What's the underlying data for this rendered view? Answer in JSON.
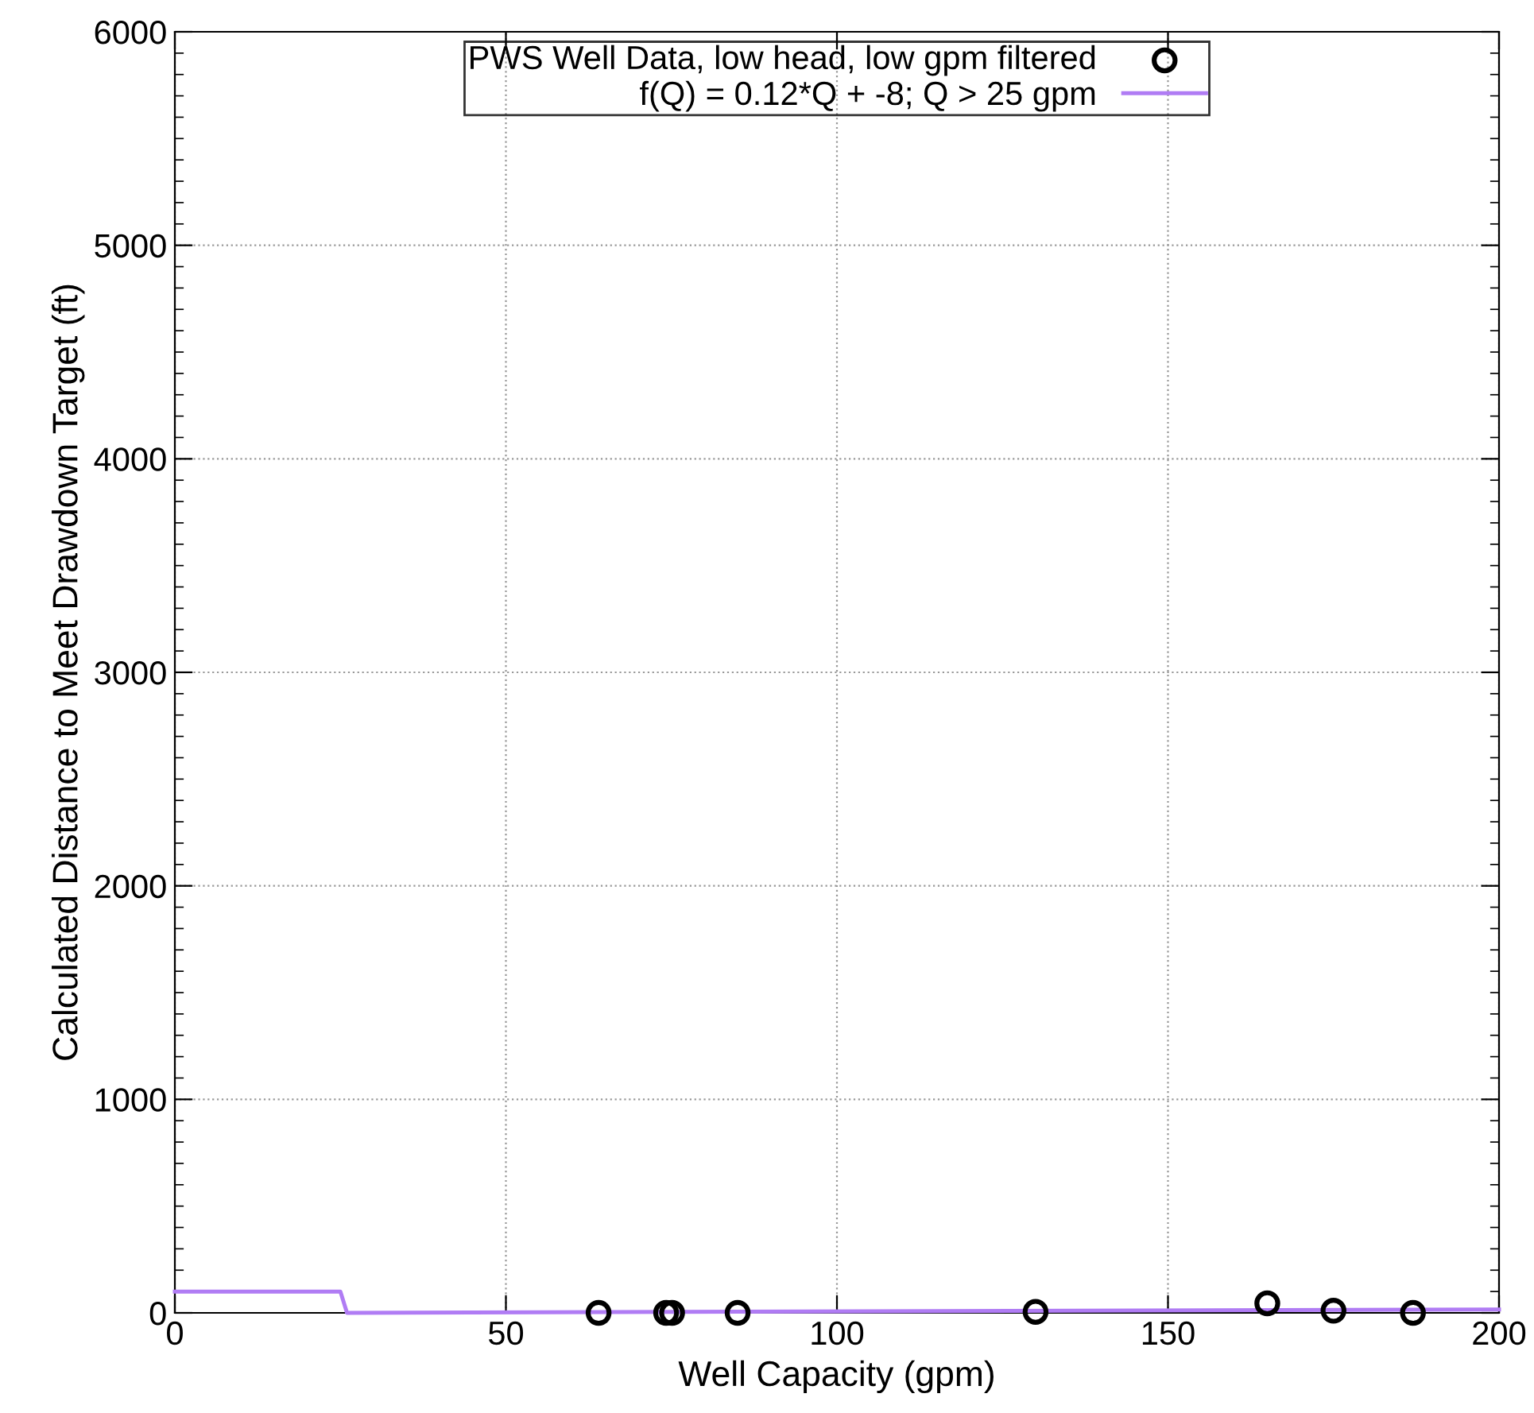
{
  "chart_data": {
    "type": "scatter",
    "xlabel": "Well Capacity (gpm)",
    "ylabel": "Calculated Distance to Meet Drawdown Target (ft)",
    "xlim": [
      0,
      200
    ],
    "ylim": [
      0,
      6000
    ],
    "xticks": [
      0,
      50,
      100,
      150,
      200
    ],
    "yticks": [
      0,
      1000,
      2000,
      3000,
      4000,
      5000,
      6000
    ],
    "grid": true,
    "legend": "top",
    "series": [
      {
        "name": "PWS Well Data, low head, low gpm filtered",
        "marker": "circle",
        "color": "#000000",
        "x": [
          64,
          74.2,
          75.1,
          85,
          130,
          165,
          175,
          187
        ],
        "values": [
          0,
          0,
          0,
          0,
          5,
          45,
          10,
          0
        ]
      },
      {
        "name": "f(Q) = 0.12*Q + -8; Q > 25 gpm",
        "type": "line",
        "color": "#b07cf4",
        "x": [
          0,
          25,
          26,
          200
        ],
        "values": [
          100,
          100,
          0,
          16
        ]
      }
    ]
  }
}
